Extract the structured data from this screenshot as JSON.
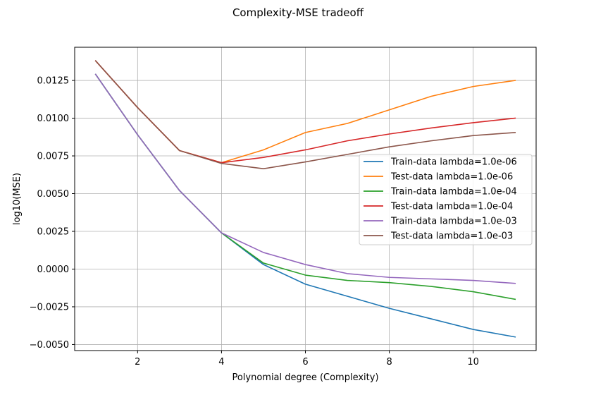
{
  "chart_data": {
    "type": "line",
    "title": "Complexity-MSE tradeoff",
    "xlabel": "Polynomial degree (Complexity)",
    "ylabel": "log10(MSE)",
    "xlim": [
      0.5,
      11.5
    ],
    "ylim": [
      -0.0054,
      0.0147
    ],
    "xticks": [
      2,
      4,
      6,
      8,
      10
    ],
    "yticks": [
      -0.005,
      -0.0025,
      0.0,
      0.0025,
      0.005,
      0.0075,
      0.01,
      0.0125
    ],
    "ytick_labels": [
      "−0.0050",
      "−0.0025",
      "0.0000",
      "0.0025",
      "0.0050",
      "0.0075",
      "0.0100",
      "0.0125"
    ],
    "grid": true,
    "legend_position": "center-right",
    "x": [
      1,
      2,
      3,
      4,
      5,
      6,
      7,
      8,
      9,
      10,
      11
    ],
    "series": [
      {
        "name": "Train-data lambda=1.0e-06",
        "color": "#1f77b4",
        "values": [
          0.0129,
          0.0089,
          0.0052,
          0.0024,
          0.0003,
          -0.001,
          -0.0018,
          -0.0026,
          -0.0033,
          -0.004,
          -0.0045
        ]
      },
      {
        "name": "Test-data lambda=1.0e-06",
        "color": "#ff7f0e",
        "values": [
          0.0138,
          0.0107,
          0.00785,
          0.00705,
          0.0079,
          0.00905,
          0.00965,
          0.01055,
          0.01145,
          0.0121,
          0.0125
        ]
      },
      {
        "name": "Train-data lambda=1.0e-04",
        "color": "#2ca02c",
        "values": [
          0.0129,
          0.0089,
          0.0052,
          0.0024,
          0.0004,
          -0.0004,
          -0.00075,
          -0.0009,
          -0.00115,
          -0.0015,
          -0.002
        ]
      },
      {
        "name": "Test-data lambda=1.0e-04",
        "color": "#d62728",
        "values": [
          0.0138,
          0.0107,
          0.00785,
          0.00705,
          0.0074,
          0.0079,
          0.0085,
          0.00895,
          0.00935,
          0.0097,
          0.01
        ]
      },
      {
        "name": "Train-data lambda=1.0e-03",
        "color": "#9467bd",
        "values": [
          0.0129,
          0.0089,
          0.0052,
          0.0024,
          0.0011,
          0.0003,
          -0.0003,
          -0.00055,
          -0.00065,
          -0.00075,
          -0.00095
        ]
      },
      {
        "name": "Test-data lambda=1.0e-03",
        "color": "#8c564b",
        "values": [
          0.0138,
          0.0107,
          0.00785,
          0.007,
          0.00665,
          0.0071,
          0.0076,
          0.0081,
          0.0085,
          0.00885,
          0.00905
        ]
      }
    ]
  }
}
